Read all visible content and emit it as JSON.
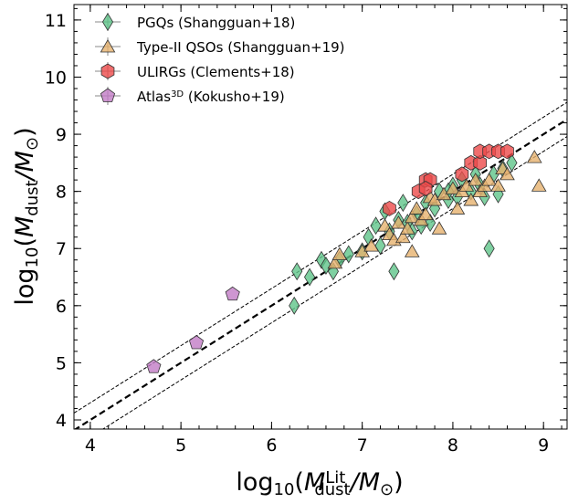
{
  "chart_data": {
    "type": "scatter",
    "x_label": [
      "log",
      "10",
      "(",
      "M",
      "Lit",
      "dust",
      "/M",
      "⊙",
      ")"
    ],
    "y_label": [
      "log",
      "10",
      "(",
      "M",
      "dust",
      "/M",
      "⊙",
      ")"
    ],
    "xlim": [
      3.82,
      9.26
    ],
    "ylim": [
      3.84,
      11.27
    ],
    "xticks": [
      4,
      5,
      6,
      7,
      8,
      9
    ],
    "yticks": [
      4,
      5,
      6,
      7,
      8,
      9,
      10,
      11
    ],
    "reference_lines": [
      {
        "intercept": 0,
        "style": "thick"
      },
      {
        "intercept": 0.3,
        "style": "thin"
      },
      {
        "intercept": -0.3,
        "style": "thin"
      }
    ],
    "legend": "upper left",
    "series": [
      {
        "name": [
          "PGQs (Shangguan+18)"
        ],
        "color": "#5fc48a",
        "marker": "diamond",
        "x": [
          6.25,
          6.28,
          6.42,
          6.55,
          6.6,
          6.68,
          6.75,
          6.85,
          7.0,
          7.07,
          7.15,
          7.2,
          7.25,
          7.3,
          7.35,
          7.4,
          7.45,
          7.5,
          7.55,
          7.6,
          7.7,
          7.75,
          7.8,
          7.85,
          7.95,
          8.0,
          8.1,
          8.2,
          8.25,
          8.35,
          8.4,
          8.45,
          8.5,
          8.55,
          8.65,
          8.3,
          7.95,
          7.65,
          8.05
        ],
        "values": [
          6.0,
          6.6,
          6.5,
          6.8,
          6.7,
          6.6,
          6.8,
          6.9,
          6.95,
          7.2,
          7.4,
          7.05,
          7.65,
          7.3,
          6.6,
          7.5,
          7.8,
          7.45,
          7.3,
          7.6,
          7.8,
          7.45,
          7.7,
          8.0,
          7.85,
          8.1,
          8.2,
          8.0,
          8.3,
          7.9,
          7.0,
          8.3,
          7.95,
          8.4,
          8.5,
          8.1,
          8.0,
          7.4,
          7.9
        ]
      },
      {
        "name": [
          "Type-II QSOs (Shangguan+19)"
        ],
        "color": "#e6b26e",
        "marker": "triangle",
        "x": [
          6.7,
          6.75,
          7.0,
          7.25,
          7.3,
          7.35,
          7.4,
          7.45,
          7.5,
          7.55,
          7.6,
          7.65,
          7.7,
          7.75,
          7.8,
          7.85,
          7.9,
          8.0,
          8.05,
          8.1,
          8.15,
          8.2,
          8.25,
          8.3,
          8.35,
          8.4,
          8.5,
          8.55,
          8.6,
          8.9,
          8.95,
          7.55,
          7.1
        ],
        "values": [
          6.75,
          6.9,
          6.95,
          7.4,
          7.25,
          7.15,
          7.45,
          7.2,
          7.35,
          7.55,
          7.7,
          7.5,
          7.6,
          7.9,
          7.85,
          7.35,
          7.95,
          8.05,
          7.7,
          8.0,
          8.1,
          7.85,
          8.2,
          8.0,
          8.1,
          8.2,
          8.1,
          8.4,
          8.3,
          8.6,
          8.1,
          6.95,
          7.05
        ]
      },
      {
        "name": [
          "ULIRGs (Clements+18)"
        ],
        "color": "#ec4a4a",
        "marker": "hexagon",
        "x": [
          7.3,
          7.62,
          7.7,
          7.75,
          8.1,
          8.2,
          8.3,
          8.3,
          8.4,
          8.5,
          8.6,
          7.7
        ],
        "values": [
          7.7,
          8.0,
          8.2,
          8.2,
          8.3,
          8.5,
          8.5,
          8.7,
          8.7,
          8.7,
          8.7,
          8.05
        ]
      },
      {
        "name": [
          "Atlas",
          "3D",
          " (Kokusho+19)"
        ],
        "color": "#c27cc6",
        "marker": "pentagon",
        "x": [
          4.7,
          5.17,
          5.57
        ],
        "values": [
          4.93,
          5.35,
          6.2
        ]
      }
    ]
  }
}
